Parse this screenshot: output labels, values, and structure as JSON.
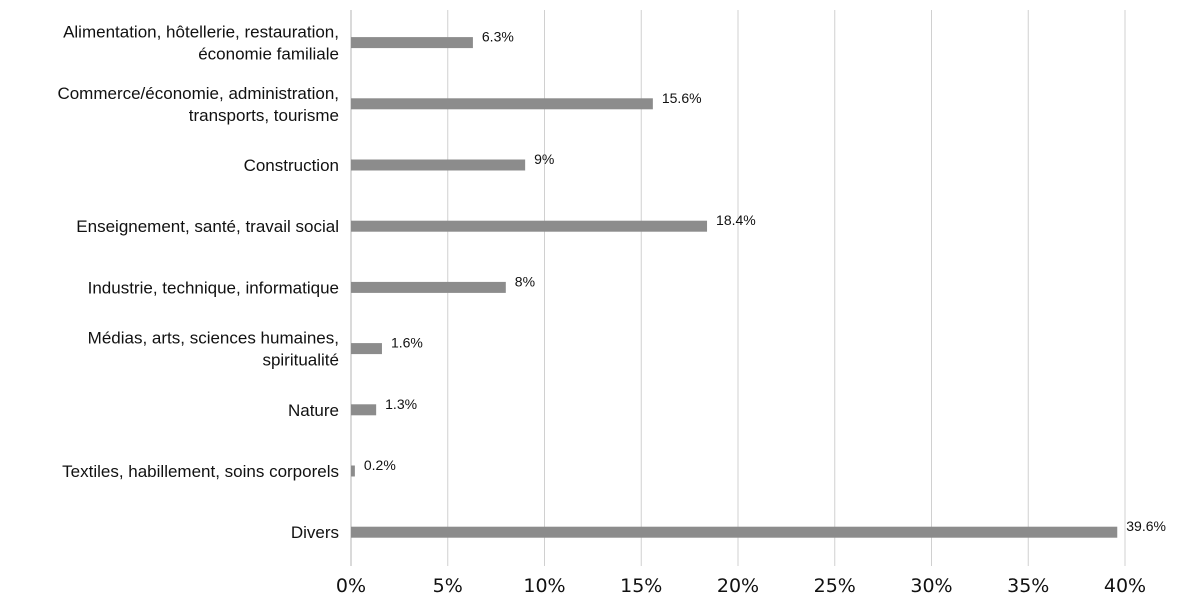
{
  "chart_data": {
    "type": "bar",
    "orientation": "horizontal",
    "title": "",
    "xlabel": "",
    "ylabel": "",
    "categories": [
      [
        "Alimentation, hôtellerie, restauration,",
        "économie familiale"
      ],
      [
        "Commerce/économie, administration,",
        "transports, tourisme"
      ],
      [
        "Construction"
      ],
      [
        "Enseignement, santé, travail social"
      ],
      [
        "Industrie, technique, informatique"
      ],
      [
        "Médias, arts, sciences humaines,",
        "spiritualité"
      ],
      [
        "Nature"
      ],
      [
        "Textiles, habillement, soins corporels"
      ],
      [
        "Divers"
      ]
    ],
    "values": [
      6.3,
      15.6,
      9,
      18.4,
      8,
      1.6,
      1.3,
      0.2,
      39.6
    ],
    "value_labels": [
      "6.3%",
      "15.6%",
      "9%",
      "18.4%",
      "8%",
      "1.6%",
      "1.3%",
      "0.2%",
      "39.6%"
    ],
    "xlim": [
      0,
      40
    ],
    "xticks": [
      0,
      5,
      10,
      15,
      20,
      25,
      30,
      35,
      40
    ],
    "xtick_labels": [
      "0%",
      "5%",
      "10%",
      "15%",
      "20%",
      "25%",
      "30%",
      "35%",
      "40%"
    ],
    "grid": true,
    "legend": "none",
    "bar_color": "#8c8c8c",
    "grid_color": "#d0d0d0"
  }
}
